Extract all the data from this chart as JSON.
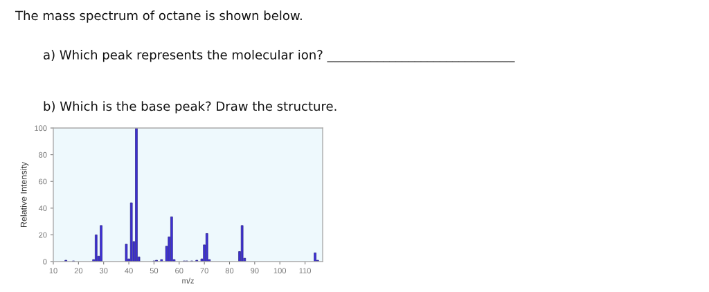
{
  "chart_data": {
    "type": "bar",
    "title": "The mass spectrum of octane is shown below.",
    "annotations": [
      "a) Which peak represents the molecular ion? ______________________________",
      "b) Which is the base peak? Draw the structure."
    ],
    "xlabel": "m/z",
    "ylabel": "Relative Intensity",
    "x": [
      15,
      18,
      26,
      27,
      28,
      29,
      39,
      40,
      41,
      42,
      43,
      44,
      50,
      51,
      53,
      55,
      56,
      57,
      58,
      62,
      63,
      65,
      67,
      69,
      70,
      71,
      72,
      84,
      85,
      86,
      114,
      115
    ],
    "values": [
      1,
      0.5,
      1.5,
      20,
      4,
      27,
      13,
      2,
      44,
      15,
      100,
      3.5,
      0.5,
      1,
      1.5,
      11.5,
      18.5,
      33.5,
      1.5,
      0.5,
      0.5,
      0.5,
      1,
      2,
      12.5,
      21,
      1.5,
      7.5,
      27,
      2.5,
      6.5,
      1
    ],
    "color": "#3d30d6",
    "xlim": [
      10,
      117
    ],
    "ylim": [
      0,
      100
    ],
    "xticks": [
      10,
      20,
      30,
      40,
      50,
      60,
      70,
      80,
      90,
      100,
      110
    ],
    "yticks": [
      0,
      20,
      40,
      60,
      80,
      100
    ]
  }
}
